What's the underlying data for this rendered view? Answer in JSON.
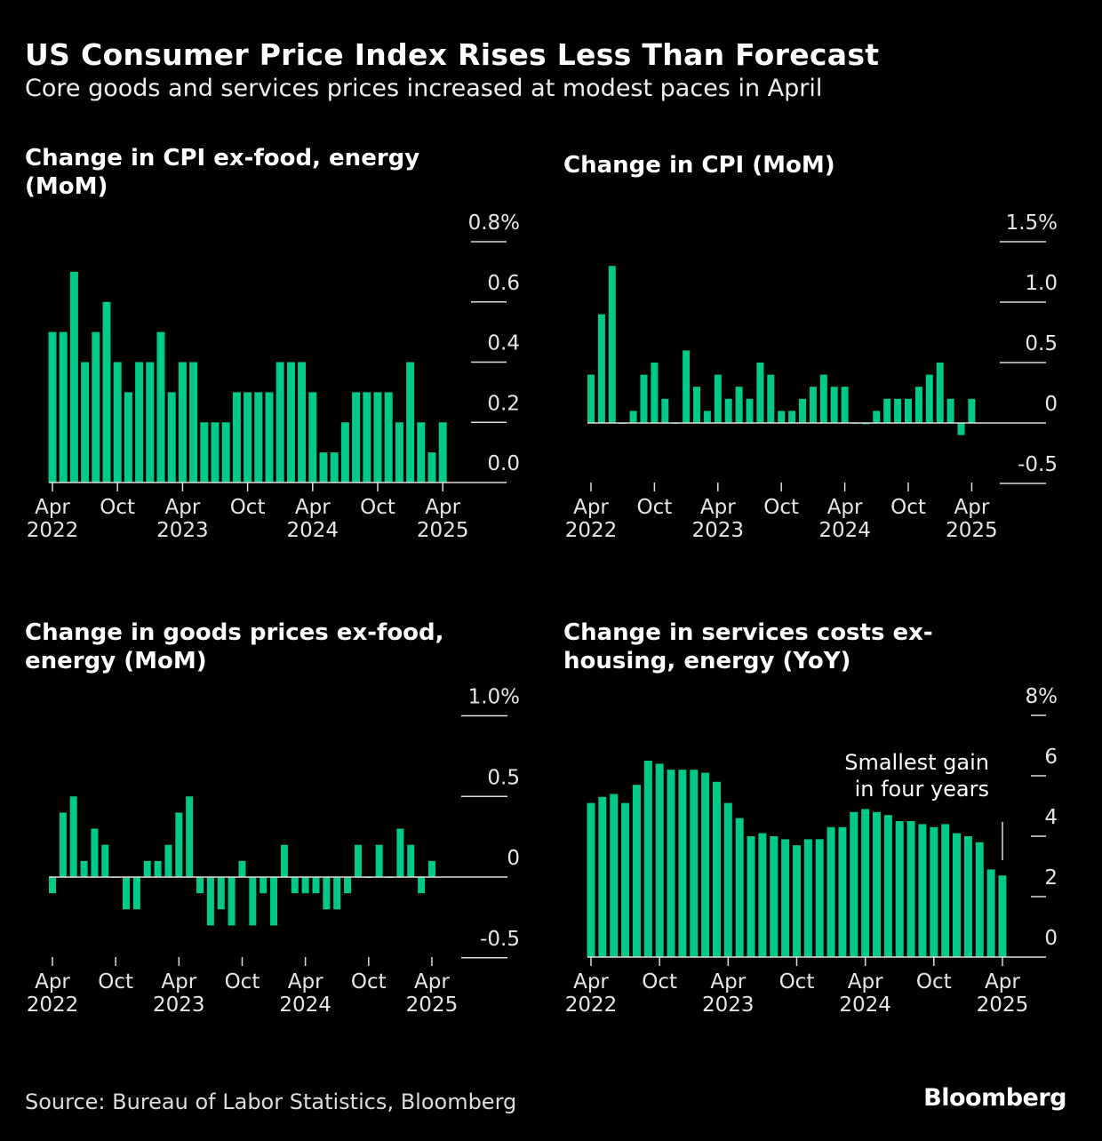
{
  "header": {
    "title": "US Consumer Price Index Rises Less Than Forecast",
    "subtitle": "Core goods and services prices increased at modest paces in April"
  },
  "footer": {
    "source": "Source: Bureau of Labor Statistics, Bloomberg",
    "logo": "Bloomberg"
  },
  "colors": {
    "bar": "#00c98a",
    "background": "#000000",
    "text": "#ffffff"
  },
  "chart_data": [
    {
      "type": "bar",
      "title": "Change in CPI ex-food, energy (MoM)",
      "x_range": [
        "Apr 2022",
        "Apr 2025"
      ],
      "x_tick_labels": [
        [
          "Apr",
          "2022"
        ],
        [
          "Oct",
          ""
        ],
        [
          "Apr",
          "2023"
        ],
        [
          "Oct",
          ""
        ],
        [
          "Apr",
          "2024"
        ],
        [
          "Oct",
          ""
        ],
        [
          "Apr",
          "2025"
        ]
      ],
      "y_tick_labels": [
        "0.8%",
        "0.6",
        "0.4",
        "0.2",
        "0.0"
      ],
      "y_ticks": [
        0.8,
        0.6,
        0.4,
        0.2,
        0.0
      ],
      "ylim": [
        0,
        0.8
      ],
      "values": [
        0.5,
        0.5,
        0.7,
        0.4,
        0.5,
        0.6,
        0.4,
        0.3,
        0.4,
        0.4,
        0.5,
        0.3,
        0.4,
        0.4,
        0.2,
        0.2,
        0.2,
        0.3,
        0.3,
        0.3,
        0.3,
        0.4,
        0.4,
        0.4,
        0.3,
        0.1,
        0.1,
        0.2,
        0.3,
        0.3,
        0.3,
        0.3,
        0.2,
        0.4,
        0.2,
        0.1,
        0.2
      ]
    },
    {
      "type": "bar",
      "title": "Change in CPI (MoM)",
      "x_range": [
        "Apr 2022",
        "Apr 2025"
      ],
      "x_tick_labels": [
        [
          "Apr",
          "2022"
        ],
        [
          "Oct",
          ""
        ],
        [
          "Apr",
          "2023"
        ],
        [
          "Oct",
          ""
        ],
        [
          "Apr",
          "2024"
        ],
        [
          "Oct",
          ""
        ],
        [
          "Apr",
          "2025"
        ]
      ],
      "y_tick_labels": [
        "1.5%",
        "1.0",
        "0.5",
        "0",
        "-0.5"
      ],
      "y_ticks": [
        1.5,
        1.0,
        0.5,
        0,
        -0.5
      ],
      "ylim": [
        -0.5,
        1.5
      ],
      "values": [
        0.4,
        0.9,
        1.3,
        0.0,
        0.1,
        0.4,
        0.5,
        0.2,
        0.0,
        0.6,
        0.3,
        0.1,
        0.4,
        0.2,
        0.3,
        0.2,
        0.5,
        0.4,
        0.1,
        0.1,
        0.2,
        0.3,
        0.4,
        0.3,
        0.3,
        0.0,
        -0.01,
        0.1,
        0.2,
        0.2,
        0.2,
        0.3,
        0.4,
        0.5,
        0.2,
        -0.1,
        0.2
      ]
    },
    {
      "type": "bar",
      "title": "Change in goods prices ex-food, energy (MoM)",
      "x_range": [
        "Apr 2022",
        "Apr 2025"
      ],
      "x_tick_labels": [
        [
          "Apr",
          "2022"
        ],
        [
          "Oct",
          ""
        ],
        [
          "Apr",
          "2023"
        ],
        [
          "Oct",
          ""
        ],
        [
          "Apr",
          "2024"
        ],
        [
          "Oct",
          ""
        ],
        [
          "Apr",
          "2025"
        ]
      ],
      "y_tick_labels": [
        "1.0%",
        "0.5",
        "0",
        "-0.5"
      ],
      "y_ticks": [
        1.0,
        0.5,
        0,
        -0.5
      ],
      "ylim": [
        -0.5,
        1.0
      ],
      "values": [
        -0.1,
        0.4,
        0.5,
        0.1,
        0.3,
        0.2,
        0.0,
        -0.2,
        -0.2,
        0.1,
        0.1,
        0.2,
        0.4,
        0.5,
        -0.1,
        -0.3,
        -0.2,
        -0.3,
        0.1,
        -0.3,
        -0.1,
        -0.3,
        0.2,
        -0.1,
        -0.1,
        -0.1,
        -0.2,
        -0.2,
        -0.1,
        0.2,
        0.0,
        0.2,
        0.0,
        0.3,
        0.2,
        -0.1,
        0.1
      ]
    },
    {
      "type": "bar",
      "title": "Change in services costs ex-housing, energy (YoY)",
      "x_range": [
        "Apr 2022",
        "Apr 2025"
      ],
      "x_tick_labels": [
        [
          "Apr",
          "2022"
        ],
        [
          "Oct",
          ""
        ],
        [
          "Apr",
          "2023"
        ],
        [
          "Oct",
          ""
        ],
        [
          "Apr",
          "2024"
        ],
        [
          "Oct",
          ""
        ],
        [
          "Apr",
          "2025"
        ]
      ],
      "y_tick_labels": [
        "8%",
        "6",
        "4",
        "2",
        "0"
      ],
      "y_ticks": [
        8,
        6,
        4,
        2,
        0
      ],
      "ylim": [
        0,
        8
      ],
      "annotation": {
        "text": [
          "Smallest gain",
          "in four years"
        ],
        "target": "Apr 2025"
      },
      "values": [
        5.1,
        5.3,
        5.4,
        5.1,
        5.7,
        6.5,
        6.4,
        6.2,
        6.2,
        6.2,
        6.1,
        5.8,
        5.1,
        4.6,
        4.0,
        4.1,
        4.0,
        3.9,
        3.7,
        3.9,
        3.9,
        4.3,
        4.3,
        4.8,
        4.9,
        4.8,
        4.7,
        4.5,
        4.5,
        4.4,
        4.3,
        4.4,
        4.1,
        4.0,
        3.8,
        2.9,
        2.7
      ]
    }
  ]
}
